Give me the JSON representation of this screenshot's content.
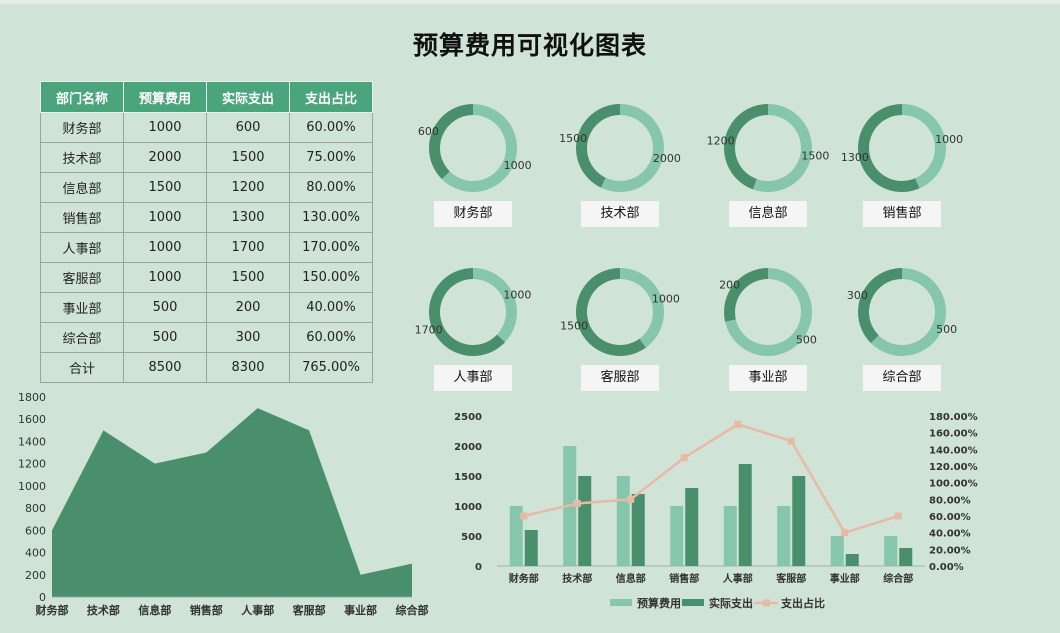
{
  "title": "预算费用可视化图表",
  "table": {
    "headers": [
      "部门名称",
      "预算费用",
      "实际支出",
      "支出占比"
    ],
    "rows": [
      [
        "财务部",
        "1000",
        "600",
        "60.00%"
      ],
      [
        "技术部",
        "2000",
        "1500",
        "75.00%"
      ],
      [
        "信息部",
        "1500",
        "1200",
        "80.00%"
      ],
      [
        "销售部",
        "1000",
        "1300",
        "130.00%"
      ],
      [
        "人事部",
        "1000",
        "1700",
        "170.00%"
      ],
      [
        "客服部",
        "1000",
        "1500",
        "150.00%"
      ],
      [
        "事业部",
        "500",
        "200",
        "40.00%"
      ],
      [
        "综合部",
        "500",
        "300",
        "60.00%"
      ],
      [
        "合计",
        "8500",
        "8300",
        "765.00%"
      ]
    ]
  },
  "colors": {
    "budget": "#86c6ac",
    "actual": "#4a8f6c",
    "ratio": "#e8b9a5",
    "area": "#4a8f6c"
  },
  "chart_data": [
    {
      "type": "pie",
      "variant": "donut-set",
      "departments": [
        {
          "name": "财务部",
          "budget": 1000,
          "actual": 600
        },
        {
          "name": "技术部",
          "budget": 2000,
          "actual": 1500
        },
        {
          "name": "信息部",
          "budget": 1500,
          "actual": 1200
        },
        {
          "name": "销售部",
          "budget": 1000,
          "actual": 1300
        },
        {
          "name": "人事部",
          "budget": 1000,
          "actual": 1700
        },
        {
          "name": "客服部",
          "budget": 1000,
          "actual": 1500
        },
        {
          "name": "事业部",
          "budget": 500,
          "actual": 200
        },
        {
          "name": "综合部",
          "budget": 500,
          "actual": 300
        }
      ]
    },
    {
      "type": "area",
      "categories": [
        "财务部",
        "技术部",
        "信息部",
        "销售部",
        "人事部",
        "客服部",
        "事业部",
        "综合部"
      ],
      "values": [
        600,
        1500,
        1200,
        1300,
        1700,
        1500,
        200,
        300
      ],
      "ylim": [
        0,
        1800
      ],
      "yticks": [
        0,
        200,
        400,
        600,
        800,
        1000,
        1200,
        1400,
        1600,
        1800
      ]
    },
    {
      "type": "bar",
      "categories": [
        "财务部",
        "技术部",
        "信息部",
        "销售部",
        "人事部",
        "客服部",
        "事业部",
        "综合部"
      ],
      "series": [
        {
          "name": "预算费用",
          "values": [
            1000,
            2000,
            1500,
            1000,
            1000,
            1000,
            500,
            500
          ]
        },
        {
          "name": "实际支出",
          "values": [
            600,
            1500,
            1200,
            1300,
            1700,
            1500,
            200,
            300
          ]
        },
        {
          "name": "支出占比",
          "type": "line",
          "axis": "right",
          "values": [
            60,
            75,
            80,
            130,
            170,
            150,
            40,
            60
          ]
        }
      ],
      "ylim": [
        0,
        2500
      ],
      "yticks": [
        0,
        500,
        1000,
        1500,
        2000,
        2500
      ],
      "y2lim": [
        0,
        180
      ],
      "y2ticks": [
        "0.00%",
        "20.00%",
        "40.00%",
        "60.00%",
        "80.00%",
        "100.00%",
        "120.00%",
        "140.00%",
        "160.00%",
        "180.00%"
      ],
      "legend": "bottom"
    }
  ]
}
